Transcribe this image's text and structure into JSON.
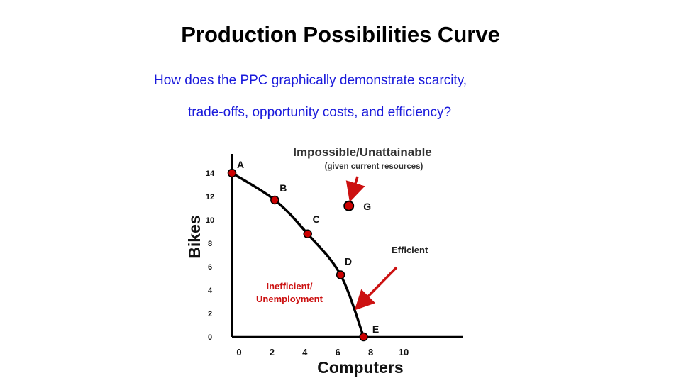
{
  "slide": {
    "title": "Production Possibilities Curve",
    "question_line1": "How does the PPC graphically demonstrate scarcity,",
    "question_line2": "trade-offs, opportunity costs, and efficiency?"
  },
  "colors": {
    "question_text": "#1a1adb",
    "point_fill": "#cc0000",
    "arrow": "#cc1111",
    "inefficient_text": "#cc1111",
    "curve": "#000000"
  },
  "chart_data": {
    "type": "line",
    "xlabel": "Computers",
    "ylabel": "Bikes",
    "xlim": [
      0,
      12
    ],
    "ylim": [
      0,
      14
    ],
    "x_ticks": [
      "0",
      "2",
      "4",
      "6",
      "8",
      "10"
    ],
    "y_ticks": [
      "0",
      "2",
      "4",
      "6",
      "8",
      "10",
      "12",
      "14"
    ],
    "grid": false,
    "curve_points": [
      {
        "label": "A",
        "x": 0,
        "y": 14
      },
      {
        "label": "B",
        "x": 2.6,
        "y": 11.7
      },
      {
        "label": "C",
        "x": 4.6,
        "y": 8.8
      },
      {
        "label": "D",
        "x": 6.6,
        "y": 5.3
      },
      {
        "label": "E",
        "x": 8.0,
        "y": 0
      }
    ],
    "outside_point": {
      "label": "G",
      "x": 7.1,
      "y": 11.2
    },
    "annotations": {
      "impossible_title": "Impossible/Unattainable",
      "impossible_sub": "(given current resources)",
      "efficient": "Efficient",
      "inefficient_line1": "Inefficient/",
      "inefficient_line2": "Unemployment"
    }
  }
}
